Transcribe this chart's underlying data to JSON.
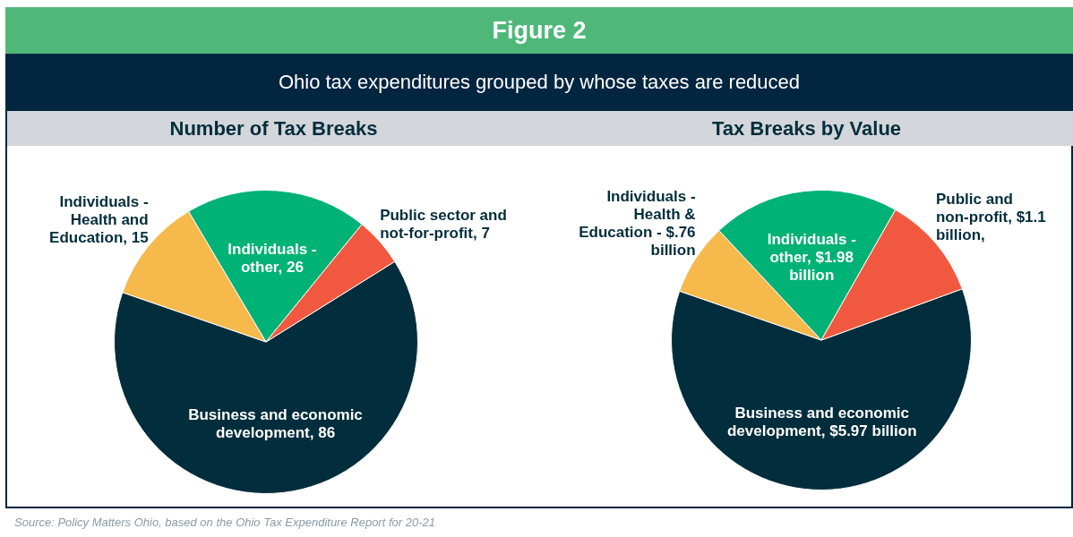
{
  "chart_data": [
    {
      "type": "other",
      "title": "Figure 2",
      "subtitle": "Ohio tax expenditures grouped by whose taxes are reduced",
      "annotations": [
        "Source: Policy Matters Ohio, based on the Ohio Tax Expenditure Report for 20-21"
      ]
    },
    {
      "type": "pie",
      "title": "Number of Tax Breaks",
      "categories": [
        "Business and economic development",
        "Individuals - Health and Education",
        "Individuals - other",
        "Public sector and not-for-profit"
      ],
      "values": [
        86,
        15,
        26,
        7
      ],
      "value_labels": [
        "86",
        "15",
        "26",
        "7"
      ],
      "colors": [
        "#022d3c",
        "#f6b94b",
        "#00b275",
        "#f0593f"
      ],
      "legend": false
    },
    {
      "type": "pie",
      "title": "Tax Breaks by Value",
      "categories": [
        "Business and economic development",
        "Individuals - Health & Education -",
        "Individuals - other",
        "Public and non-profit"
      ],
      "values": [
        5.97,
        0.76,
        1.98,
        1.1
      ],
      "value_labels": [
        "$5.97 billion",
        "$.76 billion",
        "$1.98 billion",
        "$1.1 billion,"
      ],
      "colors": [
        "#022d3c",
        "#f6b94b",
        "#00b275",
        "#f0593f"
      ],
      "legend": false
    }
  ]
}
